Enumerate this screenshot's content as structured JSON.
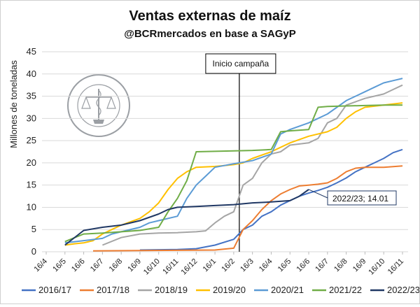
{
  "chart_data": {
    "type": "line",
    "title": "Ventas externas de maíz",
    "subtitle": "@BCRmercados en base a SAGyP",
    "xlabel": "",
    "ylabel": "Millones de toneladas",
    "ylim": [
      0,
      45
    ],
    "yticks": [
      0,
      5,
      10,
      15,
      20,
      25,
      30,
      35,
      40,
      45
    ],
    "x_start": "16/4",
    "x_end": "16/11 of following year",
    "x_ticks": [
      "16/4",
      "16/5",
      "16/6",
      "16/7",
      "16/8",
      "16/9",
      "16/10",
      "16/11",
      "16/12",
      "16/1",
      "16/2",
      "16/3",
      "16/4",
      "16/5",
      "16/6",
      "16/7",
      "16/8",
      "16/9",
      "16/10",
      "16/11"
    ],
    "grid": true,
    "legend_position": "bottom",
    "vline": {
      "x": "16/2",
      "label": "Inicio campaña"
    },
    "annotation": {
      "text": "2022/23; 14.01",
      "series": "2022/23",
      "x": "16/6",
      "y": 14.01
    },
    "series": [
      {
        "name": "2016/17",
        "color": "#4472c4",
        "points": [
          [
            "16/9",
            0.4
          ],
          [
            "16/11",
            0.5
          ],
          [
            "16/12",
            0.7
          ],
          [
            "16/1",
            1.5
          ],
          [
            "16/2",
            2.8
          ],
          [
            "1/3",
            5
          ],
          [
            "16/3",
            6
          ],
          [
            "1/4",
            8
          ],
          [
            "16/4",
            9
          ],
          [
            "1/5",
            10.5
          ],
          [
            "16/5",
            11.5
          ],
          [
            "1/6",
            12.5
          ],
          [
            "16/6",
            13.2
          ],
          [
            "1/7",
            13.8
          ],
          [
            "16/7",
            14.5
          ],
          [
            "1/8",
            15.5
          ],
          [
            "16/8",
            16.6
          ],
          [
            "1/9",
            18
          ],
          [
            "16/9",
            19
          ],
          [
            "1/10",
            20
          ],
          [
            "16/10",
            21
          ],
          [
            "1/11",
            22.3
          ],
          [
            "16/11",
            23
          ]
        ]
      },
      {
        "name": "2017/18",
        "color": "#ed7d31",
        "points": [
          [
            "1/7",
            0.2
          ],
          [
            "16/1",
            0.4
          ],
          [
            "16/2",
            0.8
          ],
          [
            "1/3",
            5
          ],
          [
            "16/3",
            7
          ],
          [
            "1/4",
            9.5
          ],
          [
            "16/4",
            11.5
          ],
          [
            "1/5",
            13
          ],
          [
            "16/5",
            14
          ],
          [
            "1/6",
            14.8
          ],
          [
            "16/6",
            15
          ],
          [
            "1/7",
            15.2
          ],
          [
            "16/7",
            15.5
          ],
          [
            "1/8",
            16.5
          ],
          [
            "16/8",
            18
          ],
          [
            "1/9",
            18.8
          ],
          [
            "16/9",
            19
          ],
          [
            "16/10",
            19
          ],
          [
            "16/11",
            19.3
          ]
        ]
      },
      {
        "name": "2018/19",
        "color": "#a5a5a5",
        "points": [
          [
            "16/7",
            1.5
          ],
          [
            "16/8",
            3.2
          ],
          [
            "16/9",
            4
          ],
          [
            "16/10",
            4.2
          ],
          [
            "16/11",
            4.3
          ],
          [
            "16/12",
            4.5
          ],
          [
            "1/1",
            4.7
          ],
          [
            "16/1",
            6.5
          ],
          [
            "1/2",
            8
          ],
          [
            "16/2",
            9
          ],
          [
            "1/3",
            15
          ],
          [
            "16/3",
            16.5
          ],
          [
            "1/4",
            20
          ],
          [
            "16/4",
            22
          ],
          [
            "1/5",
            22.5
          ],
          [
            "16/5",
            24
          ],
          [
            "16/6",
            24.5
          ],
          [
            "1/7",
            25.5
          ],
          [
            "16/7",
            29
          ],
          [
            "1/8",
            30
          ],
          [
            "16/8",
            33
          ],
          [
            "16/9",
            34.5
          ],
          [
            "16/10",
            35.5
          ],
          [
            "1/11",
            36.5
          ],
          [
            "16/11",
            37.5
          ]
        ]
      },
      {
        "name": "2019/20",
        "color": "#ffc000",
        "points": [
          [
            "16/5",
            1.5
          ],
          [
            "1/6",
            1.8
          ],
          [
            "16/6",
            2
          ],
          [
            "1/7",
            2.5
          ],
          [
            "16/7",
            4
          ],
          [
            "1/8",
            5
          ],
          [
            "16/8",
            6
          ],
          [
            "16/9",
            7.5
          ],
          [
            "1/10",
            9
          ],
          [
            "16/10",
            11
          ],
          [
            "1/11",
            14
          ],
          [
            "16/11",
            16.5
          ],
          [
            "1/12",
            18
          ],
          [
            "16/12",
            19
          ],
          [
            "16/1",
            19.2
          ],
          [
            "1/2",
            19.4
          ],
          [
            "16/2",
            19.6
          ],
          [
            "1/3",
            20
          ],
          [
            "16/3",
            21
          ],
          [
            "16/4",
            22.5
          ],
          [
            "16/5",
            24.5
          ],
          [
            "16/6",
            26
          ],
          [
            "16/7",
            27
          ],
          [
            "1/8",
            28
          ],
          [
            "16/8",
            30
          ],
          [
            "1/9",
            31.5
          ],
          [
            "16/9",
            32.5
          ],
          [
            "16/10",
            33
          ],
          [
            "16/11",
            33.5
          ]
        ]
      },
      {
        "name": "2020/21",
        "color": "#5b9bd5",
        "points": [
          [
            "16/5",
            2
          ],
          [
            "16/6",
            2.5
          ],
          [
            "16/7",
            3
          ],
          [
            "1/8",
            4
          ],
          [
            "16/8",
            4.5
          ],
          [
            "16/9",
            5.5
          ],
          [
            "1/10",
            6.5
          ],
          [
            "16/10",
            7
          ],
          [
            "16/11",
            8
          ],
          [
            "1/12",
            12
          ],
          [
            "16/12",
            15
          ],
          [
            "1/1",
            17
          ],
          [
            "16/1",
            19
          ],
          [
            "16/2",
            19.8
          ],
          [
            "16/3",
            20.5
          ],
          [
            "16/4",
            22
          ],
          [
            "1/5",
            26.5
          ],
          [
            "16/5",
            27.5
          ],
          [
            "16/6",
            29
          ],
          [
            "16/7",
            31
          ],
          [
            "16/8",
            34
          ],
          [
            "16/9",
            36
          ],
          [
            "1/10",
            37
          ],
          [
            "16/10",
            38
          ],
          [
            "1/11",
            38.5
          ],
          [
            "16/11",
            39
          ]
        ]
      },
      {
        "name": "2021/22",
        "color": "#70ad47",
        "points": [
          [
            "16/5",
            2.3
          ],
          [
            "16/6",
            4
          ],
          [
            "16/7",
            4.2
          ],
          [
            "16/8",
            4.5
          ],
          [
            "16/9",
            4.8
          ],
          [
            "16/10",
            5.5
          ],
          [
            "1/11",
            9
          ],
          [
            "16/11",
            12
          ],
          [
            "1/12",
            16
          ],
          [
            "16/12",
            22.5
          ],
          [
            "16/1",
            22.6
          ],
          [
            "16/2",
            22.7
          ],
          [
            "16/3",
            22.8
          ],
          [
            "1/4",
            22.9
          ],
          [
            "16/4",
            23
          ],
          [
            "1/5",
            27
          ],
          [
            "16/5",
            27.2
          ],
          [
            "16/6",
            27.5
          ],
          [
            "1/7",
            32.5
          ],
          [
            "16/7",
            32.7
          ],
          [
            "16/8",
            32.8
          ],
          [
            "16/9",
            32.9
          ],
          [
            "16/10",
            33
          ],
          [
            "16/11",
            33
          ]
        ]
      },
      {
        "name": "2022/23",
        "color": "#203864",
        "points": [
          [
            "16/5",
            1.5
          ],
          [
            "16/6",
            4.8
          ],
          [
            "16/7",
            5.5
          ],
          [
            "16/8",
            6
          ],
          [
            "16/9",
            7
          ],
          [
            "16/10",
            8.5
          ],
          [
            "1/11",
            9.5
          ],
          [
            "16/11",
            10
          ],
          [
            "16/12",
            10.2
          ],
          [
            "16/1",
            10.4
          ],
          [
            "16/2",
            10.6
          ],
          [
            "16/3",
            11
          ],
          [
            "16/4",
            11.2
          ],
          [
            "16/5",
            11.5
          ],
          [
            "1/6",
            12.5
          ],
          [
            "16/6",
            14.01
          ]
        ]
      }
    ]
  }
}
